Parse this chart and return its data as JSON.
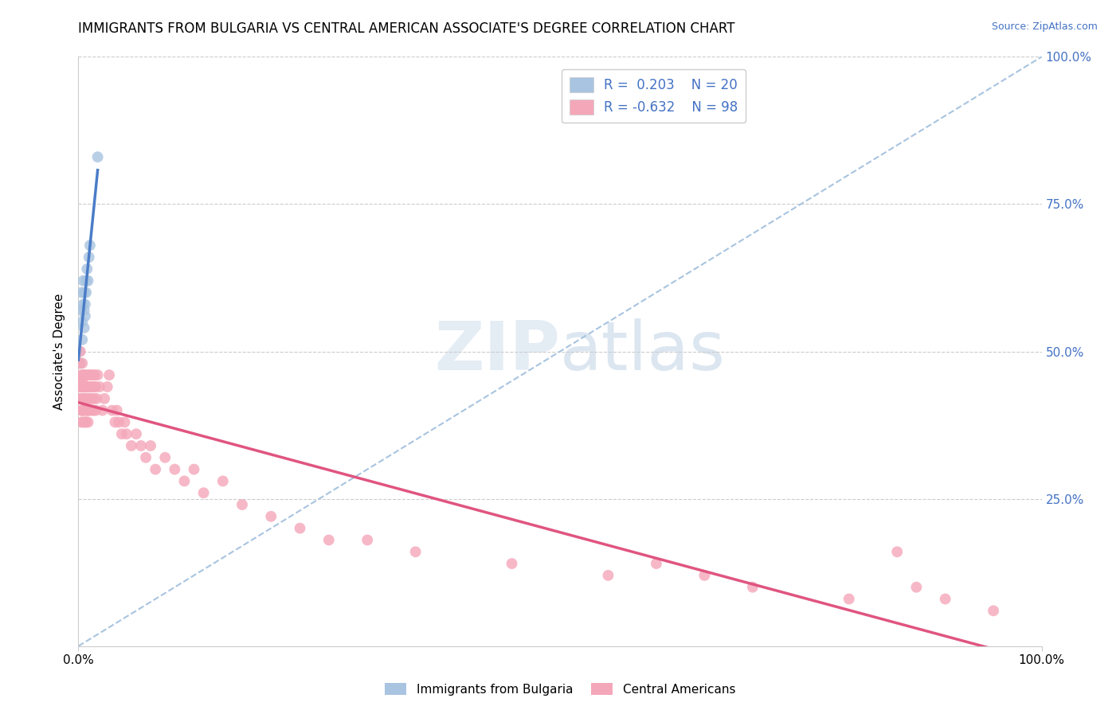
{
  "title": "IMMIGRANTS FROM BULGARIA VS CENTRAL AMERICAN ASSOCIATE'S DEGREE CORRELATION CHART",
  "source_text": "Source: ZipAtlas.com",
  "ylabel": "Associate's Degree",
  "blue_R": 0.203,
  "blue_N": 20,
  "pink_R": -0.632,
  "pink_N": 98,
  "blue_color": "#a8c4e0",
  "blue_line_color": "#4a7cc7",
  "pink_color": "#f4a7b9",
  "pink_line_color": "#e05580",
  "dashed_line_color": "#a8c4e0",
  "title_fontsize": 12,
  "background_color": "#ffffff",
  "grid_color": "#cccccc",
  "blue_x": [
    0.001,
    0.002,
    0.003,
    0.003,
    0.004,
    0.004,
    0.005,
    0.005,
    0.006,
    0.006,
    0.006,
    0.007,
    0.007,
    0.008,
    0.008,
    0.009,
    0.01,
    0.011,
    0.012,
    0.02
  ],
  "blue_y": [
    0.5,
    0.48,
    0.57,
    0.6,
    0.52,
    0.55,
    0.58,
    0.62,
    0.54,
    0.57,
    0.6,
    0.56,
    0.58,
    0.6,
    0.62,
    0.64,
    0.62,
    0.66,
    0.68,
    0.83
  ],
  "pink_x": [
    0.001,
    0.001,
    0.002,
    0.002,
    0.002,
    0.003,
    0.003,
    0.003,
    0.003,
    0.003,
    0.004,
    0.004,
    0.004,
    0.004,
    0.004,
    0.005,
    0.005,
    0.005,
    0.005,
    0.005,
    0.006,
    0.006,
    0.006,
    0.006,
    0.007,
    0.007,
    0.007,
    0.007,
    0.008,
    0.008,
    0.008,
    0.008,
    0.009,
    0.009,
    0.009,
    0.01,
    0.01,
    0.01,
    0.01,
    0.01,
    0.011,
    0.011,
    0.012,
    0.012,
    0.013,
    0.013,
    0.014,
    0.014,
    0.015,
    0.015,
    0.016,
    0.016,
    0.017,
    0.017,
    0.018,
    0.018,
    0.019,
    0.02,
    0.022,
    0.025,
    0.027,
    0.03,
    0.032,
    0.035,
    0.038,
    0.04,
    0.042,
    0.045,
    0.048,
    0.05,
    0.055,
    0.06,
    0.065,
    0.07,
    0.075,
    0.08,
    0.09,
    0.1,
    0.11,
    0.12,
    0.13,
    0.15,
    0.17,
    0.2,
    0.23,
    0.26,
    0.3,
    0.35,
    0.45,
    0.55,
    0.6,
    0.65,
    0.7,
    0.8,
    0.85,
    0.87,
    0.9,
    0.95
  ],
  "pink_y": [
    0.48,
    0.42,
    0.44,
    0.5,
    0.45,
    0.42,
    0.46,
    0.38,
    0.44,
    0.4,
    0.45,
    0.4,
    0.44,
    0.48,
    0.42,
    0.46,
    0.42,
    0.38,
    0.44,
    0.4,
    0.44,
    0.46,
    0.4,
    0.42,
    0.44,
    0.42,
    0.38,
    0.46,
    0.42,
    0.44,
    0.4,
    0.38,
    0.44,
    0.4,
    0.42,
    0.46,
    0.44,
    0.42,
    0.4,
    0.38,
    0.46,
    0.4,
    0.44,
    0.42,
    0.46,
    0.44,
    0.4,
    0.42,
    0.44,
    0.46,
    0.4,
    0.42,
    0.46,
    0.44,
    0.4,
    0.44,
    0.42,
    0.46,
    0.44,
    0.4,
    0.42,
    0.44,
    0.46,
    0.4,
    0.38,
    0.4,
    0.38,
    0.36,
    0.38,
    0.36,
    0.34,
    0.36,
    0.34,
    0.32,
    0.34,
    0.3,
    0.32,
    0.3,
    0.28,
    0.3,
    0.26,
    0.28,
    0.24,
    0.22,
    0.2,
    0.18,
    0.18,
    0.16,
    0.14,
    0.12,
    0.14,
    0.12,
    0.1,
    0.08,
    0.16,
    0.1,
    0.08,
    0.06
  ]
}
